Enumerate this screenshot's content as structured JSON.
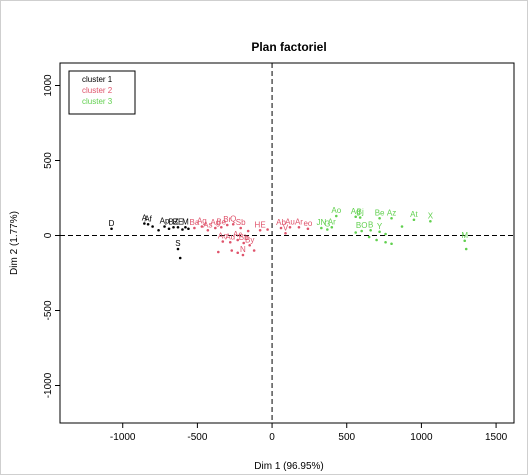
{
  "chart_data": {
    "type": "scatter",
    "title": "Plan factoriel",
    "xlabel": "Dim 1 (96.95%)",
    "ylabel": "Dim 2 (1.77%)",
    "xlim": [
      -1420,
      1620
    ],
    "ylim": [
      -1250,
      1150
    ],
    "xticks": [
      -1000,
      -500,
      0,
      500,
      1000,
      1500
    ],
    "yticks": [
      -1000,
      -500,
      0,
      500,
      1000
    ],
    "xtick_labels": [
      "-1000",
      "-500",
      "0",
      "500",
      "1000",
      "1500"
    ],
    "ytick_labels": [
      "-1000",
      "-500",
      "0",
      "500",
      "1000"
    ],
    "reference_lines": {
      "x": 0,
      "y": 0,
      "style": "dashed"
    },
    "legend": {
      "position": "top-left",
      "entries": [
        {
          "label": "cluster 1",
          "color": "#000000"
        },
        {
          "label": "cluster 2",
          "color": "#DF536B"
        },
        {
          "label": "cluster 3",
          "color": "#61D04F"
        }
      ]
    },
    "series": [
      {
        "name": "cluster 1",
        "color": "#000000",
        "points": [
          {
            "x": -1075,
            "y": 45,
            "label": "D"
          },
          {
            "x": -855,
            "y": 80,
            "label": "A"
          },
          {
            "x": -830,
            "y": 75,
            "label": "Af"
          },
          {
            "x": -800,
            "y": 60
          },
          {
            "x": -720,
            "y": 60,
            "label": "Ap"
          },
          {
            "x": -660,
            "y": 55,
            "label": "BZ"
          },
          {
            "x": -630,
            "y": 55,
            "label": "BE"
          },
          {
            "x": -580,
            "y": 55,
            "label": "M"
          },
          {
            "x": -690,
            "y": 45
          },
          {
            "x": -600,
            "y": 40
          },
          {
            "x": -560,
            "y": 45
          },
          {
            "x": -760,
            "y": 35
          },
          {
            "x": -630,
            "y": -90,
            "label": "S"
          },
          {
            "x": -615,
            "y": -150
          }
        ]
      },
      {
        "name": "cluster 2",
        "color": "#DF536B",
        "points": [
          {
            "x": -520,
            "y": 50,
            "label": "Ba"
          },
          {
            "x": -470,
            "y": 60,
            "label": "Ag"
          },
          {
            "x": -430,
            "y": 35,
            "label": "As"
          },
          {
            "x": -380,
            "y": 50,
            "label": "Ag"
          },
          {
            "x": -340,
            "y": 55,
            "label": "Be"
          },
          {
            "x": -300,
            "y": 70,
            "label": "Br"
          },
          {
            "x": -260,
            "y": 75,
            "label": "Q"
          },
          {
            "x": -210,
            "y": 50,
            "label": "Sb"
          },
          {
            "x": -160,
            "y": 30
          },
          {
            "x": -330,
            "y": -40,
            "label": "Ao"
          },
          {
            "x": -280,
            "y": -45,
            "label": "Au"
          },
          {
            "x": -230,
            "y": -30,
            "label": "Ac"
          },
          {
            "x": -190,
            "y": -50,
            "label": "Bb"
          },
          {
            "x": -150,
            "y": -65,
            "label": "By"
          },
          {
            "x": -360,
            "y": -110
          },
          {
            "x": -270,
            "y": -100
          },
          {
            "x": -230,
            "y": -115
          },
          {
            "x": -195,
            "y": -130,
            "label": "N"
          },
          {
            "x": -120,
            "y": -100
          },
          {
            "x": -80,
            "y": 35,
            "label": "HE"
          },
          {
            "x": -30,
            "y": 40
          },
          {
            "x": 60,
            "y": 50,
            "label": "Ab"
          },
          {
            "x": 120,
            "y": 55,
            "label": "Au"
          },
          {
            "x": 180,
            "y": 55,
            "label": "Ar"
          },
          {
            "x": 240,
            "y": 45,
            "label": "eo"
          },
          {
            "x": 90,
            "y": 15,
            "label": "V"
          }
        ]
      },
      {
        "name": "cluster 3",
        "color": "#61D04F",
        "points": [
          {
            "x": 330,
            "y": 50,
            "label": "JN"
          },
          {
            "x": 370,
            "y": 40,
            "label": "G"
          },
          {
            "x": 400,
            "y": 55,
            "label": "Ar"
          },
          {
            "x": 430,
            "y": 130,
            "label": "Ao"
          },
          {
            "x": 560,
            "y": 125,
            "label": "Ag"
          },
          {
            "x": 590,
            "y": 120,
            "label": "Bj"
          },
          {
            "x": 720,
            "y": 115,
            "label": "Be"
          },
          {
            "x": 800,
            "y": 115,
            "label": "Az"
          },
          {
            "x": 950,
            "y": 105,
            "label": "At"
          },
          {
            "x": 1060,
            "y": 95,
            "label": "X"
          },
          {
            "x": 1290,
            "y": -35,
            "label": "M"
          },
          {
            "x": 600,
            "y": 30,
            "label": "BO"
          },
          {
            "x": 660,
            "y": 35,
            "label": "B"
          },
          {
            "x": 720,
            "y": 25,
            "label": "Y"
          },
          {
            "x": 760,
            "y": 10
          },
          {
            "x": 700,
            "y": -30
          },
          {
            "x": 760,
            "y": -45
          },
          {
            "x": 800,
            "y": -55
          },
          {
            "x": 650,
            "y": -10
          },
          {
            "x": 560,
            "y": 20
          },
          {
            "x": 870,
            "y": 60
          },
          {
            "x": 1300,
            "y": -90
          }
        ]
      }
    ]
  }
}
